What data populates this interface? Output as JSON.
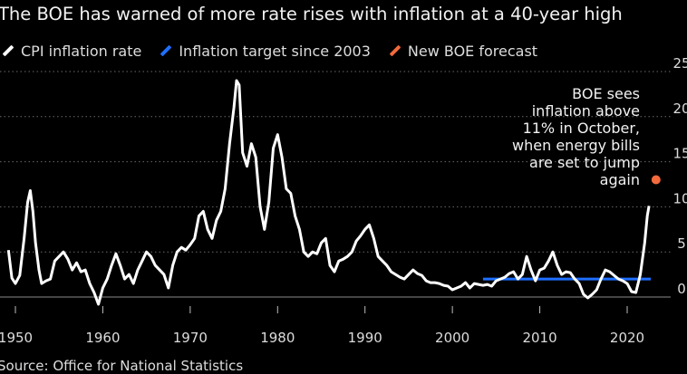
{
  "title": "The BOE has warned of more rate rises with inflation at a 40-year high",
  "source": "Source: Office for National Statistics",
  "legend": [
    {
      "label": "CPI inflation rate",
      "color": "#ffffff"
    },
    {
      "label": "Inflation target since 2003",
      "color": "#1f6fff"
    },
    {
      "label": "New BOE forecast",
      "color": "#f26a3d"
    }
  ],
  "annotation": "BOE sees\ninflation above\n11% in October,\nwhen energy bills\nare set to jump\nagain",
  "chart_data": {
    "type": "line",
    "title": "The BOE has warned of more rate rises with inflation at a 40-year high",
    "xlabel": "",
    "ylabel": "",
    "xlim": [
      1949,
      2024
    ],
    "ylim": [
      -2,
      25
    ],
    "x_ticks": [
      "1950",
      "1960",
      "1970",
      "1980",
      "1990",
      "2000",
      "2010",
      "2020"
    ],
    "y_ticks": [
      "0",
      "5",
      "10",
      "15",
      "20",
      "25"
    ],
    "grid": "horizontal dotted",
    "legend_position": "top",
    "series": [
      {
        "name": "CPI inflation rate",
        "color": "#ffffff",
        "x": [
          1949.2,
          1949.6,
          1950.0,
          1950.5,
          1951.0,
          1951.4,
          1951.7,
          1952.0,
          1952.3,
          1952.7,
          1953.0,
          1953.5,
          1954.0,
          1954.5,
          1955.0,
          1955.5,
          1956.0,
          1956.5,
          1957.0,
          1957.5,
          1958.0,
          1958.5,
          1959.0,
          1959.5,
          1960.0,
          1960.5,
          1961.0,
          1961.5,
          1962.0,
          1962.5,
          1963.0,
          1963.5,
          1964.0,
          1964.5,
          1965.0,
          1965.5,
          1966.0,
          1966.5,
          1967.0,
          1967.5,
          1968.0,
          1968.5,
          1969.0,
          1969.5,
          1970.0,
          1970.5,
          1971.0,
          1971.5,
          1972.0,
          1972.5,
          1973.0,
          1973.5,
          1974.0,
          1974.5,
          1975.0,
          1975.3,
          1975.6,
          1976.0,
          1976.5,
          1977.0,
          1977.5,
          1978.0,
          1978.5,
          1979.0,
          1979.5,
          1980.0,
          1980.5,
          1981.0,
          1981.5,
          1982.0,
          1982.5,
          1983.0,
          1983.5,
          1984.0,
          1984.5,
          1985.0,
          1985.5,
          1986.0,
          1986.5,
          1987.0,
          1987.5,
          1988.0,
          1988.5,
          1989.0,
          1989.5,
          1990.0,
          1990.5,
          1991.0,
          1991.5,
          1992.0,
          1992.5,
          1993.0,
          1993.5,
          1994.0,
          1994.5,
          1995.0,
          1995.5,
          1996.0,
          1996.5,
          1997.0,
          1997.5,
          1998.0,
          1998.5,
          1999.0,
          1999.5,
          2000.0,
          2000.5,
          2001.0,
          2001.5,
          2002.0,
          2002.5,
          2003.0,
          2003.5,
          2004.0,
          2004.5,
          2005.0,
          2005.5,
          2006.0,
          2006.5,
          2007.0,
          2007.5,
          2008.0,
          2008.5,
          2009.0,
          2009.5,
          2010.0,
          2010.5,
          2011.0,
          2011.5,
          2012.0,
          2012.5,
          2013.0,
          2013.5,
          2014.0,
          2014.5,
          2015.0,
          2015.5,
          2016.0,
          2016.5,
          2017.0,
          2017.5,
          2018.0,
          2018.5,
          2019.0,
          2019.5,
          2020.0,
          2020.5,
          2021.0,
          2021.5,
          2022.0,
          2022.3,
          2022.5
        ],
        "values": [
          5.2,
          2.1,
          1.5,
          2.4,
          6.5,
          10.5,
          11.8,
          9.5,
          6.0,
          3.0,
          1.5,
          1.8,
          2.0,
          4.0,
          4.5,
          5.0,
          4.2,
          3.0,
          3.8,
          2.8,
          3.0,
          1.5,
          0.5,
          -0.8,
          1.0,
          2.0,
          3.5,
          4.8,
          3.5,
          2.0,
          2.5,
          1.5,
          3.0,
          4.0,
          5.0,
          4.5,
          3.5,
          3.0,
          2.5,
          1.0,
          3.5,
          5.0,
          5.5,
          5.2,
          5.8,
          6.5,
          9.0,
          9.5,
          7.5,
          6.5,
          8.5,
          9.5,
          12.0,
          17.0,
          21.0,
          24.0,
          23.5,
          16.0,
          14.5,
          17.0,
          15.5,
          10.0,
          7.5,
          10.5,
          16.5,
          18.0,
          15.5,
          12.0,
          11.5,
          9.0,
          7.5,
          5.0,
          4.5,
          5.0,
          4.8,
          6.0,
          6.5,
          3.5,
          2.8,
          4.0,
          4.2,
          4.5,
          5.0,
          6.2,
          6.8,
          7.5,
          8.0,
          6.5,
          4.5,
          4.0,
          3.5,
          2.8,
          2.5,
          2.2,
          2.0,
          2.5,
          3.0,
          2.6,
          2.4,
          1.8,
          1.6,
          1.6,
          1.5,
          1.3,
          1.2,
          0.8,
          1.0,
          1.2,
          1.6,
          1.0,
          1.5,
          1.4,
          1.3,
          1.4,
          1.2,
          1.8,
          2.0,
          2.2,
          2.6,
          2.8,
          2.0,
          2.5,
          4.5,
          3.0,
          1.8,
          3.0,
          3.2,
          4.0,
          5.0,
          3.5,
          2.5,
          2.8,
          2.7,
          2.0,
          1.5,
          0.3,
          -0.1,
          0.3,
          0.8,
          2.0,
          3.0,
          2.8,
          2.4,
          2.0,
          1.8,
          1.5,
          0.6,
          0.5,
          2.5,
          6.0,
          9.0,
          10.1
        ]
      },
      {
        "name": "Inflation target since 2003",
        "color": "#1f6fff",
        "x": [
          2003.5,
          2022.7
        ],
        "values": [
          2,
          2
        ]
      },
      {
        "name": "New BOE forecast",
        "color": "#f26a3d",
        "x": [
          2023.3
        ],
        "values": [
          13
        ]
      }
    ]
  }
}
